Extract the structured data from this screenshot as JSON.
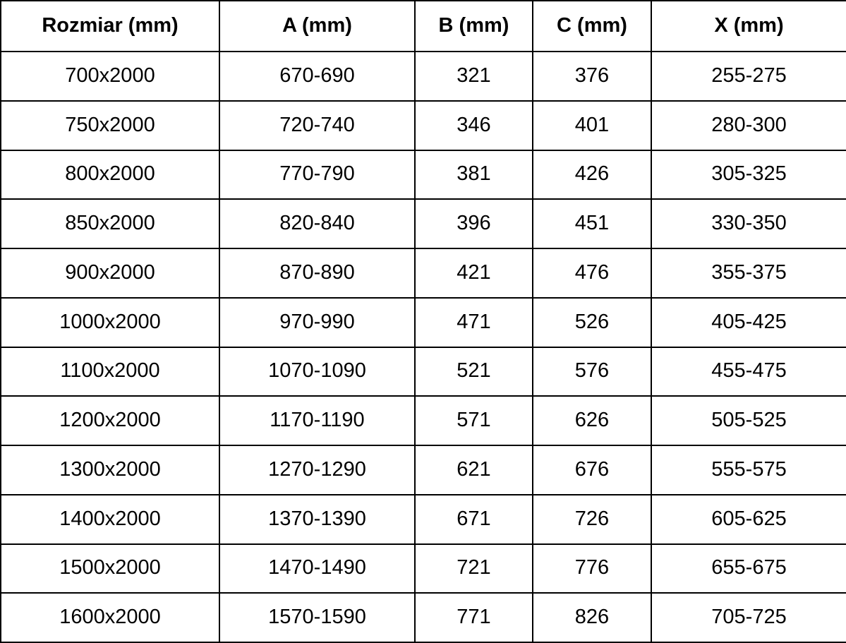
{
  "chart_data": {
    "type": "table",
    "columns": [
      "Rozmiar (mm)",
      "A (mm)",
      "B (mm)",
      "C (mm)",
      "X (mm)"
    ],
    "rows": [
      [
        "700x2000",
        "670-690",
        "321",
        "376",
        "255-275"
      ],
      [
        "750x2000",
        "720-740",
        "346",
        "401",
        "280-300"
      ],
      [
        "800x2000",
        "770-790",
        "381",
        "426",
        "305-325"
      ],
      [
        "850x2000",
        "820-840",
        "396",
        "451",
        "330-350"
      ],
      [
        "900x2000",
        "870-890",
        "421",
        "476",
        "355-375"
      ],
      [
        "1000x2000",
        "970-990",
        "471",
        "526",
        "405-425"
      ],
      [
        "1100x2000",
        "1070-1090",
        "521",
        "576",
        "455-475"
      ],
      [
        "1200x2000",
        "1170-1190",
        "571",
        "626",
        "505-525"
      ],
      [
        "1300x2000",
        "1270-1290",
        "621",
        "676",
        "555-575"
      ],
      [
        "1400x2000",
        "1370-1390",
        "671",
        "726",
        "605-625"
      ],
      [
        "1500x2000",
        "1470-1490",
        "721",
        "776",
        "655-675"
      ],
      [
        "1600x2000",
        "1570-1590",
        "771",
        "826",
        "705-725"
      ]
    ]
  },
  "colors": {
    "border": "#000000",
    "text": "#000000",
    "background": "#ffffff"
  }
}
